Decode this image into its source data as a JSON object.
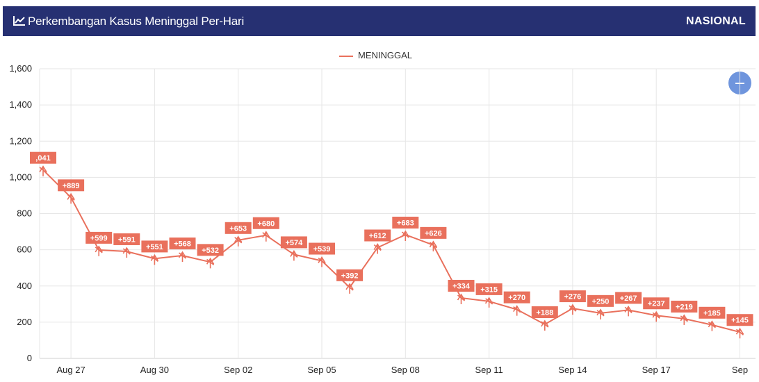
{
  "header": {
    "title": "Perkembangan Kasus Meninggal Per-Hari",
    "scope": "NASIONAL",
    "icon": "line-chart-icon"
  },
  "zoom_button": {
    "icon": "minus-icon"
  },
  "colors": {
    "header_bg": "#263072",
    "series": "#e9705c",
    "zoom": "#6f95dd"
  },
  "chart_data": {
    "type": "line",
    "legend": "MENINGGAL",
    "legend_position": "top-center",
    "grid": true,
    "ylim": [
      0,
      1600
    ],
    "y_ticks": [
      "0",
      "200",
      "400",
      "600",
      "800",
      "1,000",
      "1,200",
      "1,400",
      "1,600"
    ],
    "x_tick_labels": [
      "Aug 27",
      "Aug 30",
      "Sep 02",
      "Sep 05",
      "Sep 08",
      "Sep 11",
      "Sep 14",
      "Sep 17",
      "Sep"
    ],
    "series": [
      {
        "name": "MENINGGAL",
        "values": [
          1041,
          889,
          599,
          591,
          551,
          568,
          532,
          653,
          680,
          574,
          539,
          392,
          612,
          683,
          626,
          334,
          315,
          270,
          188,
          276,
          250,
          267,
          237,
          219,
          185,
          145
        ],
        "labels": [
          ",041",
          "+889",
          "+599",
          "+591",
          "+551",
          "+568",
          "+532",
          "+653",
          "+680",
          "+574",
          "+539",
          "+392",
          "+612",
          "+683",
          "+626",
          "+334",
          "+315",
          "+270",
          "+188",
          "+276",
          "+250",
          "+267",
          "+237",
          "+219",
          "+185",
          "+145"
        ]
      }
    ]
  }
}
